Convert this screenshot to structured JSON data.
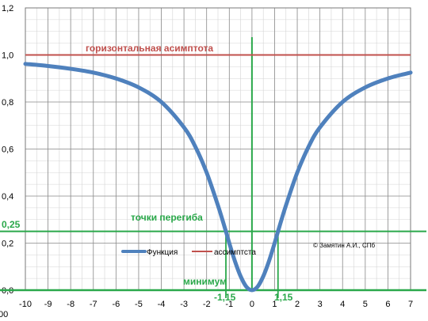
{
  "chart_data": {
    "type": "line",
    "xlim": [
      -10,
      7
    ],
    "ylim": [
      0,
      1.2
    ],
    "x_ticks": [
      -10,
      -9,
      -8,
      -7,
      -6,
      -5,
      -4,
      -3,
      -2,
      -1,
      0,
      1,
      2,
      3,
      4,
      5,
      6,
      7
    ],
    "y_ticks": [
      0,
      0.2,
      0.4,
      0.6,
      0.8,
      1.0,
      1.2
    ],
    "x_tick_labels": [
      "-10",
      "-9",
      "-8",
      "-7",
      "-6",
      "-5",
      "-4",
      "-3",
      "-2",
      "-1",
      "0",
      "1",
      "2",
      "3",
      "4",
      "5",
      "6",
      "7"
    ],
    "y_tick_labels": [
      "0,0",
      "0,2",
      "0,4",
      "0,6",
      "0,8",
      "1,0",
      "1,2"
    ],
    "grid": true,
    "minor_grid_step": 0.5,
    "legend_position": "center-left",
    "series": [
      {
        "name": "Функция",
        "color": "#4f81bd",
        "x": [
          -10,
          -9,
          -8,
          -7,
          -6,
          -5,
          -4,
          -3,
          -2.5,
          -2,
          -1.5,
          -1.15,
          -1,
          -0.75,
          -0.5,
          -0.25,
          0,
          0.25,
          0.5,
          0.75,
          1,
          1.15,
          1.5,
          2,
          2.5,
          3,
          4,
          5,
          6,
          7
        ],
        "y": [
          0.962,
          0.953,
          0.941,
          0.925,
          0.9,
          0.862,
          0.8,
          0.692,
          0.61,
          0.5,
          0.36,
          0.25,
          0.2,
          0.123,
          0.059,
          0.015,
          0,
          0.015,
          0.059,
          0.123,
          0.2,
          0.25,
          0.36,
          0.5,
          0.61,
          0.692,
          0.8,
          0.862,
          0.9,
          0.925
        ]
      },
      {
        "name": "ассимптста",
        "color": "#c0504d",
        "x": [
          -10,
          7
        ],
        "y": [
          1,
          1
        ]
      }
    ],
    "annotations": {
      "asymptote_label": "горизонтальная асимптота",
      "inflection_label": "точки перегиба",
      "inflection_value": "0,25",
      "minimum_label": "минимум",
      "inflection_x_left": "-1,15",
      "inflection_x_right": "1,15",
      "credit": "© Замятин А.И., СПб",
      "corner_fragment": "00"
    },
    "guides": {
      "color": "#2aa84a",
      "vertical_axis_x": 0,
      "inflection_y": 0.25,
      "inflection_xs": [
        -1.15,
        1.15
      ]
    }
  }
}
